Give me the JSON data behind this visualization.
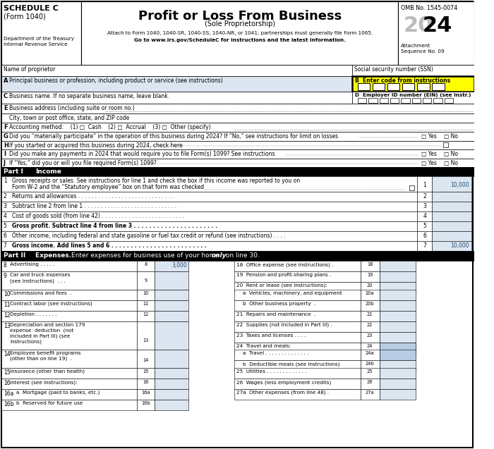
{
  "title": "Profit or Loss From Business",
  "subtitle": "(Sole Proprietorship)",
  "attach_text": "Attach to Form 1040, 1040-SR, 1040-SS, 1040-NR, or 1041; partnerships must generally file Form 1065.",
  "goto_text": "Go to www.irs.gov/ScheduleC for instructions and the latest information.",
  "schedule_c": "SCHEDULE C",
  "form_1040": "(Form 1040)",
  "dept": "Department of the Treasury",
  "irs": "Internal Revenue Service",
  "omb": "OMB No. 1545-0074",
  "year": "2024",
  "attachment": "Attachment",
  "sequence": "Sequence No. 09",
  "bg_color": "#ffffff",
  "light_blue": "#dce6f1",
  "medium_blue": "#b8cce4",
  "highlight_yellow": "#ffff00",
  "value_color": "#1f4e79"
}
